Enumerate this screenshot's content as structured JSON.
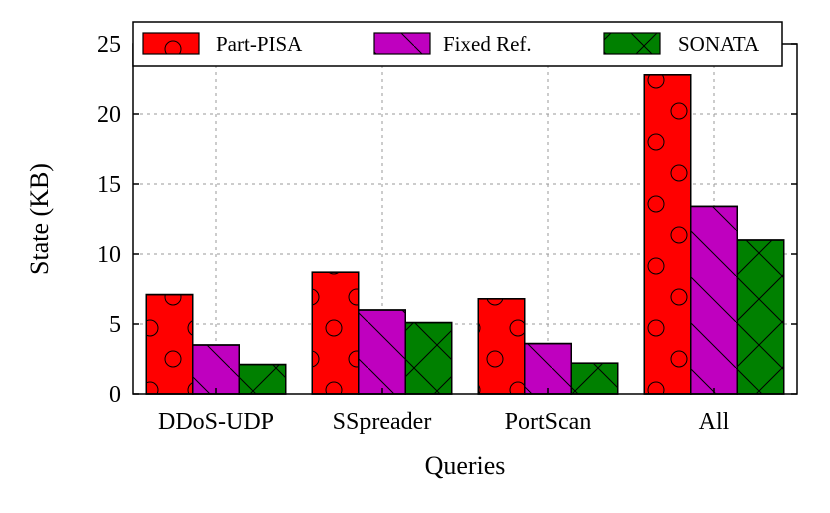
{
  "chart_data": {
    "type": "bar",
    "title": "",
    "xlabel": "Queries",
    "ylabel": "State (KB)",
    "categories": [
      "DDoS-UDP",
      "SSpreader",
      "PortScan",
      "All"
    ],
    "series": [
      {
        "name": "Part-PISA",
        "color": "#ff0000",
        "pattern": "circles",
        "values": [
          7.1,
          8.7,
          6.8,
          22.8
        ]
      },
      {
        "name": "Fixed Ref.",
        "color": "#bf00bf",
        "pattern": "diagonal",
        "values": [
          3.5,
          6.0,
          3.6,
          13.4
        ]
      },
      {
        "name": "SONATA",
        "color": "#008000",
        "pattern": "crosshatch",
        "values": [
          2.1,
          5.1,
          2.2,
          11.0
        ]
      }
    ],
    "ylim": [
      0,
      25
    ],
    "yticks": [
      0,
      5,
      10,
      15,
      20,
      25
    ],
    "grid": true,
    "legend_position": "top"
  }
}
